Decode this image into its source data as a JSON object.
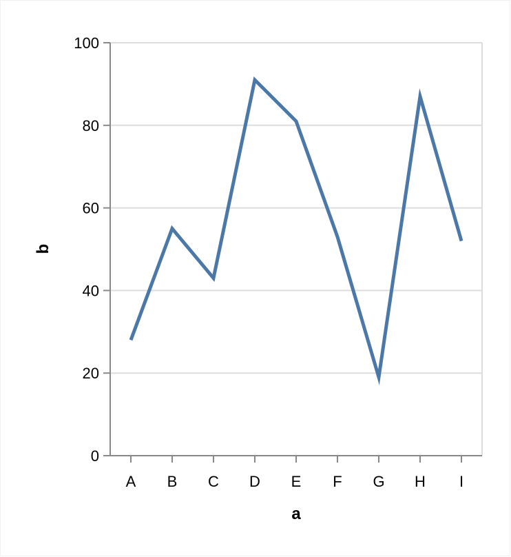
{
  "chart_data": {
    "type": "line",
    "title": "",
    "xlabel": "a",
    "ylabel": "b",
    "categories": [
      "A",
      "B",
      "C",
      "D",
      "E",
      "F",
      "G",
      "H",
      "I"
    ],
    "values": [
      28,
      55,
      43,
      91,
      81,
      53,
      19,
      87,
      52
    ],
    "ylim": [
      0,
      100
    ],
    "yticks": [
      0,
      20,
      40,
      60,
      80,
      100
    ],
    "grid": true,
    "line_color": "#4c78a8"
  }
}
